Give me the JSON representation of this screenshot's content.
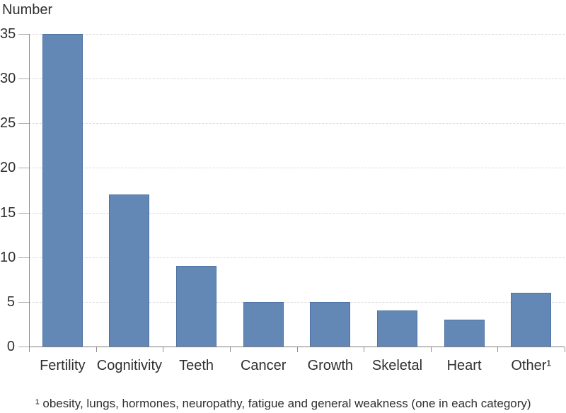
{
  "chart_data": {
    "type": "bar",
    "title": "",
    "ylabel": "Number",
    "xlabel": "",
    "categories": [
      "Fertility",
      "Cognitivity",
      "Teeth",
      "Cancer",
      "Growth",
      "Skeletal",
      "Heart",
      "Other¹"
    ],
    "values": [
      35,
      17,
      9,
      5,
      5,
      4,
      3,
      6
    ],
    "ylim": [
      0,
      35
    ],
    "yticks": [
      0,
      5,
      10,
      15,
      20,
      25,
      30,
      35
    ],
    "grid": "horizontal-dashed",
    "legend": "none",
    "bar_color": "#6488b6",
    "bar_border_color": "#4d71a3",
    "grid_color": "#d9d9d9",
    "axis_color": "#8f8f8f",
    "footnote": "¹ obesity, lungs, hormones, neuropathy, fatigue and general weakness (one in each category)"
  }
}
